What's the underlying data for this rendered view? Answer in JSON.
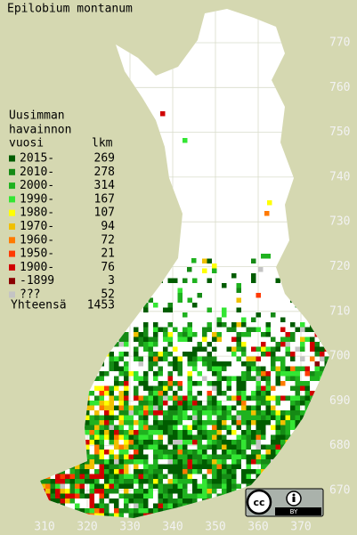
{
  "title": "Epilobium montanum",
  "legend": {
    "header": [
      "Uusimman",
      "havainnon",
      "vuosi"
    ],
    "count_header": "lkm",
    "entries": [
      {
        "label": "2015-",
        "count": 269,
        "color": "#005c00"
      },
      {
        "label": "2010-",
        "count": 278,
        "color": "#158a15"
      },
      {
        "label": "2000-",
        "count": 314,
        "color": "#1fb21f"
      },
      {
        "label": "1990-",
        "count": 167,
        "color": "#33e633"
      },
      {
        "label": "1980-",
        "count": 107,
        "color": "#ffff00"
      },
      {
        "label": "1970-",
        "count": 94,
        "color": "#f0c000"
      },
      {
        "label": "1960-",
        "count": 72,
        "color": "#ff7a00"
      },
      {
        "label": "1950-",
        "count": 21,
        "color": "#ff3a00"
      },
      {
        "label": "1900-",
        "count": 76,
        "color": "#d00000"
      },
      {
        "label": "-1899",
        "count": 3,
        "color": "#8a0000"
      },
      {
        "label": "???",
        "count": 52,
        "color": "#c4c4c4"
      }
    ],
    "total_label": "Yhteensä",
    "total": 1453
  },
  "map": {
    "x_ticks": [
      310,
      320,
      330,
      340,
      350,
      360,
      370
    ],
    "y_ticks": [
      670,
      680,
      690,
      700,
      710,
      720,
      730,
      740,
      750,
      760,
      770
    ]
  },
  "license": {
    "logo": "cc",
    "label": "BY"
  }
}
